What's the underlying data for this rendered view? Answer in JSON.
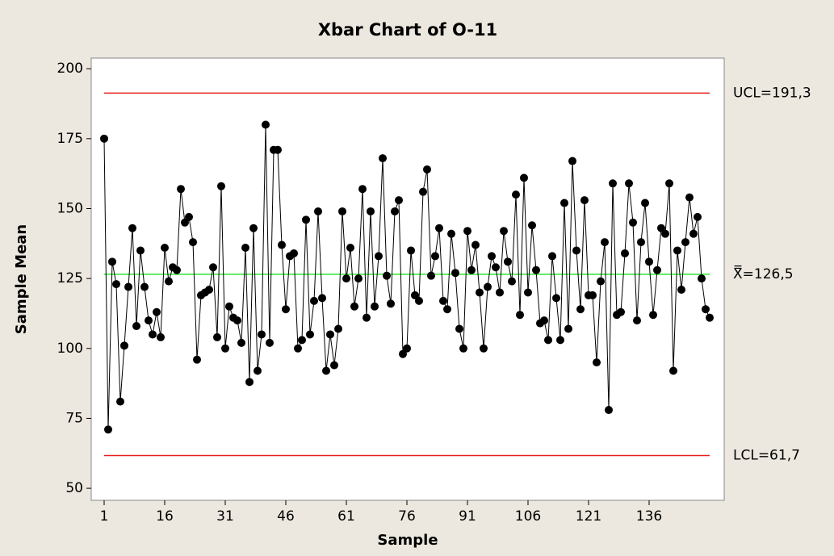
{
  "chart_data": {
    "type": "line",
    "title": "Xbar Chart of O-11",
    "x_label": "Sample",
    "y_label": "Sample Mean",
    "x": [
      1,
      2,
      3,
      4,
      5,
      6,
      7,
      8,
      9,
      10,
      11,
      12,
      13,
      14,
      15,
      16,
      17,
      18,
      19,
      20,
      21,
      22,
      23,
      24,
      25,
      26,
      27,
      28,
      29,
      30,
      31,
      32,
      33,
      34,
      35,
      36,
      37,
      38,
      39,
      40,
      41,
      42,
      43,
      44,
      45,
      46,
      47,
      48,
      49,
      50,
      51,
      52,
      53,
      54,
      55,
      56,
      57,
      58,
      59,
      60,
      61,
      62,
      63,
      64,
      65,
      66,
      67,
      68,
      69,
      70,
      71,
      72,
      73,
      74,
      75,
      76,
      77,
      78,
      79,
      80,
      81,
      82,
      83,
      84,
      85,
      86,
      87,
      88,
      89,
      90,
      91,
      92,
      93,
      94,
      95,
      96,
      97,
      98,
      99,
      100,
      101,
      102,
      103,
      104,
      105,
      106,
      107,
      108,
      109,
      110,
      111,
      112,
      113,
      114,
      115,
      116,
      117,
      118,
      119,
      120,
      121,
      122,
      123,
      124,
      125,
      126,
      127,
      128,
      129,
      130,
      131,
      132,
      133,
      134,
      135,
      136,
      137,
      138,
      139,
      140,
      141,
      142,
      143,
      144,
      145,
      146,
      147,
      148,
      149,
      150,
      151
    ],
    "series": [
      {
        "name": "Sample Mean",
        "color": "#000000",
        "values": [
          175,
          71,
          131,
          123,
          81,
          101,
          122,
          143,
          108,
          135,
          122,
          110,
          105,
          113,
          104,
          136,
          124,
          129,
          128,
          157,
          145,
          147,
          138,
          96,
          119,
          120,
          121,
          129,
          104,
          158,
          100,
          115,
          111,
          110,
          102,
          136,
          88,
          143,
          92,
          105,
          180,
          102,
          171,
          171,
          137,
          114,
          133,
          134,
          100,
          103,
          146,
          105,
          117,
          149,
          118,
          92,
          105,
          94,
          107,
          149,
          125,
          136,
          115,
          125,
          157,
          111,
          149,
          115,
          133,
          168,
          126,
          116,
          149,
          153,
          98,
          100,
          135,
          119,
          117,
          156,
          164,
          126,
          133,
          143,
          117,
          114,
          141,
          127,
          107,
          100,
          142,
          128,
          137,
          120,
          100,
          122,
          133,
          129,
          120,
          142,
          131,
          124,
          155,
          112,
          161,
          120,
          144,
          128,
          109,
          110,
          103,
          133,
          118,
          103,
          152,
          107,
          167,
          135,
          114,
          153,
          119,
          119,
          95,
          124,
          138,
          78,
          159,
          112,
          113,
          134,
          159,
          145,
          110,
          138,
          152,
          131,
          112,
          128,
          143,
          141,
          159,
          92,
          135,
          121,
          138,
          154,
          141,
          147,
          125,
          114,
          111
        ]
      }
    ],
    "control_lines": [
      {
        "label": "UCL=191,3",
        "value": 191.3,
        "color": "#e8201e"
      },
      {
        "label": "X̿=126,5",
        "value": 126.5,
        "color": "#2ee52e"
      },
      {
        "label": "LCL=61,7",
        "value": 61.7,
        "color": "#e8201e"
      }
    ],
    "xlim": [
      -2.2,
      154.6
    ],
    "ylim": [
      45.7,
      203.8
    ],
    "xticks": [
      1,
      16,
      31,
      46,
      61,
      76,
      91,
      106,
      121,
      136
    ],
    "yticks": [
      50,
      75,
      100,
      125,
      150,
      175,
      200
    ]
  }
}
